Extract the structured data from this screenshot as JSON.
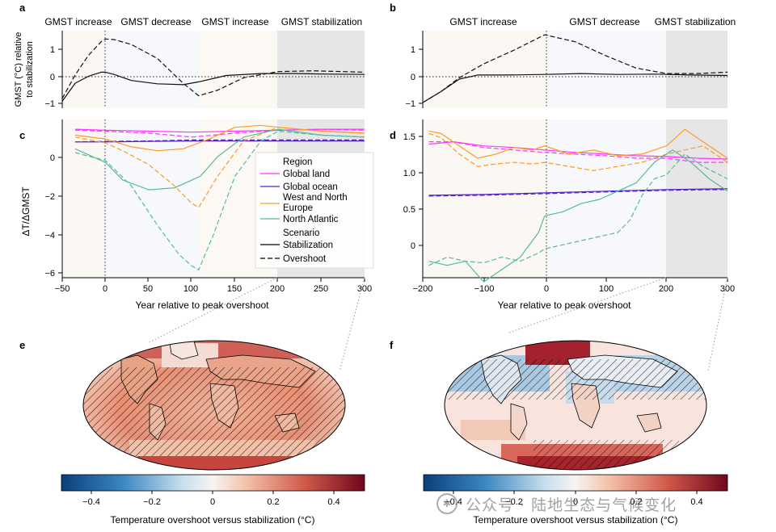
{
  "panels": {
    "a": {
      "letter": "a",
      "ylabel_line1": "GMST (°C) relative",
      "ylabel_line2": "to stabilization",
      "phases": [
        "GMST increase",
        "GMST decrease",
        "GMST increase",
        "GMST stabilization"
      ],
      "yticks": [
        "1",
        "0",
        "−1"
      ]
    },
    "b": {
      "letter": "b",
      "phases": [
        "GMST increase",
        "GMST decrease",
        "GMST stabilization"
      ],
      "yticks": [
        "1",
        "0",
        "−1"
      ]
    },
    "c": {
      "letter": "c",
      "yticks": [
        "0",
        "−2",
        "−4",
        "−6"
      ],
      "xticks": [
        "−50",
        "0",
        "50",
        "100",
        "150",
        "200",
        "250",
        "300"
      ],
      "xlabel": "Year relative to peak overshoot"
    },
    "d": {
      "letter": "d",
      "yticks": [
        "1.5",
        "1.0",
        "0.5",
        "0"
      ],
      "xticks": [
        "−200",
        "−100",
        "0",
        "100",
        "200",
        "300"
      ],
      "xlabel": "Year relative to peak overshoot"
    },
    "e": {
      "letter": "e"
    },
    "f": {
      "letter": "f"
    }
  },
  "shared_ylabel_cd": "ΔT/ΔGMST",
  "legend": {
    "region_title": "Region",
    "regions": [
      {
        "name": "Global land",
        "color": "#ff33ff"
      },
      {
        "name": "Global ocean",
        "color": "#5522cc"
      },
      {
        "name": "West and North",
        "color": "#ff9922"
      },
      {
        "name": "Europe",
        "color": "#ff9922"
      },
      {
        "name": "North Atlantic",
        "color": "#55bb99"
      }
    ],
    "scenario_title": "Scenario",
    "scenarios": [
      {
        "name": "Stabilization",
        "style": "solid"
      },
      {
        "name": "Overshoot",
        "style": "dashed"
      }
    ]
  },
  "colorbar": {
    "ticks": [
      "−0.4",
      "−0.2",
      "0",
      "0.2",
      "0.4"
    ],
    "label": "Temperature overshoot versus stabilization (°C)"
  },
  "watermark": {
    "text": "公众号 · 陆地生态与气候变化"
  },
  "chart_data": [
    {
      "panel": "a",
      "type": "line",
      "xlim": [
        -50,
        300
      ],
      "ylim": [
        -1.2,
        1.6
      ],
      "series": [
        {
          "name": "Stabilization",
          "style": "solid",
          "x": [
            -50,
            -35,
            -20,
            -5,
            0,
            10,
            30,
            60,
            90,
            108,
            140,
            180,
            220,
            260,
            300
          ],
          "y": [
            -0.95,
            -0.3,
            -0.05,
            0.1,
            0.1,
            0.02,
            -0.2,
            -0.32,
            -0.35,
            -0.25,
            -0.02,
            0.05,
            0.05,
            0.03,
            0.02
          ]
        },
        {
          "name": "Overshoot",
          "style": "dashed",
          "x": [
            -50,
            -35,
            -20,
            -5,
            0,
            10,
            30,
            60,
            90,
            108,
            130,
            160,
            200,
            240,
            300
          ],
          "y": [
            -0.85,
            0.0,
            0.7,
            1.2,
            1.3,
            1.28,
            1.1,
            0.6,
            -0.3,
            -0.75,
            -0.55,
            -0.1,
            0.12,
            0.15,
            0.1
          ]
        }
      ]
    },
    {
      "panel": "b",
      "type": "line",
      "xlim": [
        -200,
        300
      ],
      "ylim": [
        -1.2,
        1.6
      ],
      "series": [
        {
          "name": "Stabilization",
          "style": "solid",
          "x": [
            -200,
            -170,
            -140,
            -110,
            -60,
            0,
            60,
            120,
            180,
            240,
            300
          ],
          "y": [
            -1.0,
            -0.6,
            -0.15,
            0.0,
            0.0,
            0.02,
            0.05,
            0.02,
            0.03,
            0.0,
            -0.02
          ]
        },
        {
          "name": "Overshoot",
          "style": "dashed",
          "x": [
            -200,
            -170,
            -140,
            -100,
            -50,
            0,
            50,
            100,
            150,
            200,
            250,
            300
          ],
          "y": [
            -1.0,
            -0.6,
            -0.1,
            0.4,
            0.9,
            1.45,
            1.2,
            0.7,
            0.25,
            0.05,
            0.05,
            0.1
          ]
        }
      ]
    },
    {
      "panel": "c",
      "type": "line",
      "xlim": [
        -50,
        300
      ],
      "ylim": [
        -6.2,
        1.9
      ],
      "series": [
        {
          "name": "Global land",
          "scenario": "Stabilization",
          "color": "#ff33ff",
          "x": [
            -35,
            0,
            50,
            100,
            150,
            200,
            250,
            300
          ],
          "y": [
            1.4,
            1.35,
            1.3,
            1.25,
            1.3,
            1.35,
            1.4,
            1.4
          ]
        },
        {
          "name": "Global land",
          "scenario": "Overshoot",
          "color": "#ff33ff",
          "x": [
            -35,
            0,
            50,
            100,
            150,
            200,
            250,
            300
          ],
          "y": [
            1.35,
            1.3,
            1.2,
            1.0,
            1.2,
            1.35,
            1.4,
            1.35
          ]
        },
        {
          "name": "Global ocean",
          "scenario": "Stabilization",
          "color": "#5522cc",
          "x": [
            -35,
            0,
            50,
            100,
            150,
            200,
            250,
            300
          ],
          "y": [
            0.75,
            0.75,
            0.78,
            0.8,
            0.8,
            0.8,
            0.8,
            0.8
          ]
        },
        {
          "name": "Global ocean",
          "scenario": "Overshoot",
          "color": "#5522cc",
          "x": [
            -35,
            0,
            50,
            100,
            150,
            200,
            250,
            300
          ],
          "y": [
            0.75,
            0.78,
            0.8,
            0.85,
            0.85,
            0.85,
            0.85,
            0.85
          ]
        },
        {
          "name": "West and North Europe",
          "scenario": "Stabilization",
          "color": "#ff9922",
          "x": [
            -35,
            0,
            30,
            60,
            90,
            120,
            150,
            180,
            200,
            250,
            300
          ],
          "y": [
            1.1,
            0.9,
            0.5,
            0.3,
            0.4,
            0.9,
            1.5,
            1.6,
            1.5,
            1.3,
            1.2
          ]
        },
        {
          "name": "West and North Europe",
          "scenario": "Overshoot",
          "color": "#ff9922",
          "x": [
            -35,
            0,
            20,
            50,
            80,
            100,
            108,
            130,
            160,
            200,
            250,
            300
          ],
          "y": [
            1.0,
            0.7,
            0.3,
            -0.4,
            -1.5,
            -2.4,
            -2.6,
            -1.0,
            0.8,
            1.5,
            1.3,
            1.2
          ]
        },
        {
          "name": "North Atlantic",
          "scenario": "Stabilization",
          "color": "#55bb99",
          "x": [
            -35,
            0,
            20,
            50,
            80,
            110,
            130,
            160,
            200,
            250,
            300
          ],
          "y": [
            0.4,
            -0.3,
            -1.2,
            -1.7,
            -1.6,
            -1.0,
            0.0,
            1.0,
            1.4,
            1.1,
            1.0
          ]
        },
        {
          "name": "North Atlantic",
          "scenario": "Overshoot",
          "color": "#55bb99",
          "x": [
            -35,
            0,
            30,
            60,
            85,
            100,
            108,
            125,
            150,
            180,
            200,
            250,
            300
          ],
          "y": [
            0.2,
            -0.2,
            -1.5,
            -3.5,
            -5.0,
            -5.6,
            -5.8,
            -4.0,
            -1.0,
            0.8,
            1.3,
            1.1,
            1.0
          ]
        }
      ]
    },
    {
      "panel": "d",
      "type": "line",
      "xlim": [
        -200,
        300
      ],
      "ylim": [
        -0.2,
        1.72
      ],
      "series": [
        {
          "name": "Global land",
          "scenario": "Stabilization",
          "color": "#ff33ff",
          "x": [
            -190,
            -150,
            -100,
            -50,
            0,
            50,
            100,
            150,
            200,
            250,
            300
          ],
          "y": [
            1.42,
            1.45,
            1.4,
            1.38,
            1.35,
            1.32,
            1.3,
            1.28,
            1.27,
            1.25,
            1.24
          ]
        },
        {
          "name": "Global land",
          "scenario": "Overshoot",
          "color": "#ff33ff",
          "x": [
            -190,
            -150,
            -100,
            -50,
            0,
            50,
            100,
            150,
            200,
            250,
            300
          ],
          "y": [
            1.45,
            1.45,
            1.38,
            1.35,
            1.32,
            1.3,
            1.28,
            1.25,
            1.25,
            1.2,
            1.2
          ]
        },
        {
          "name": "Global ocean",
          "scenario": "Stabilization",
          "color": "#5522cc",
          "x": [
            -190,
            -100,
            0,
            100,
            200,
            300
          ],
          "y": [
            0.8,
            0.81,
            0.83,
            0.85,
            0.87,
            0.88
          ]
        },
        {
          "name": "Global ocean",
          "scenario": "Overshoot",
          "color": "#5522cc",
          "x": [
            -190,
            -100,
            0,
            100,
            200,
            300
          ],
          "y": [
            0.79,
            0.8,
            0.82,
            0.84,
            0.86,
            0.87
          ]
        },
        {
          "name": "West and North Europe",
          "scenario": "Stabilization",
          "color": "#ff9922",
          "x": [
            -190,
            -170,
            -140,
            -110,
            -80,
            -50,
            -20,
            0,
            40,
            80,
            120,
            160,
            200,
            230,
            260,
            300
          ],
          "y": [
            1.58,
            1.55,
            1.4,
            1.25,
            1.3,
            1.38,
            1.35,
            1.4,
            1.3,
            1.35,
            1.28,
            1.3,
            1.4,
            1.6,
            1.45,
            1.25
          ]
        },
        {
          "name": "West and North Europe",
          "scenario": "Overshoot",
          "color": "#ff9922",
          "x": [
            -190,
            -170,
            -140,
            -110,
            -80,
            -50,
            -20,
            0,
            40,
            80,
            120,
            160,
            200,
            230,
            260,
            300
          ],
          "y": [
            1.55,
            1.5,
            1.3,
            1.15,
            1.18,
            1.2,
            1.18,
            1.2,
            1.15,
            1.1,
            1.15,
            1.2,
            1.3,
            1.35,
            1.4,
            1.2
          ]
        },
        {
          "name": "North Atlantic",
          "scenario": "Stabilization",
          "color": "#55bb99",
          "x": [
            -190,
            -160,
            -130,
            -100,
            -70,
            -40,
            -10,
            0,
            30,
            60,
            90,
            120,
            150,
            180,
            210,
            240,
            270,
            300
          ],
          "y": [
            0.0,
            -0.05,
            0.0,
            -0.25,
            -0.1,
            0.05,
            0.35,
            0.55,
            0.6,
            0.7,
            0.75,
            0.85,
            0.95,
            1.2,
            1.35,
            1.2,
            1.0,
            0.85
          ]
        },
        {
          "name": "North Atlantic",
          "scenario": "Overshoot",
          "color": "#55bb99",
          "x": [
            -190,
            -160,
            -130,
            -100,
            -70,
            -40,
            -10,
            0,
            30,
            60,
            90,
            120,
            140,
            160,
            180,
            200,
            230,
            260,
            300
          ],
          "y": [
            -0.05,
            0.05,
            0.0,
            -0.02,
            0.05,
            0.0,
            0.1,
            0.15,
            0.2,
            0.25,
            0.3,
            0.35,
            0.5,
            0.8,
            1.0,
            1.05,
            1.3,
            1.15,
            1.0
          ]
        }
      ]
    }
  ]
}
